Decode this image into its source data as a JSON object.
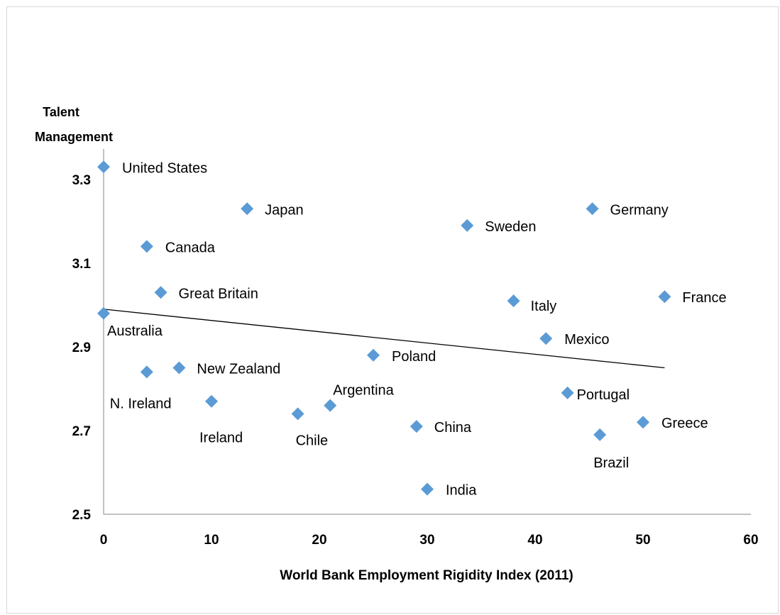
{
  "chart_data": {
    "type": "scatter",
    "title": "",
    "ylabel": [
      "Talent",
      "Management"
    ],
    "xlabel": "World Bank Employment Rigidity Index (2011)",
    "xlim": [
      0,
      60
    ],
    "ylim": [
      2.5,
      3.4
    ],
    "x_ticks": [
      "0",
      "10",
      "20",
      "30",
      "40",
      "50",
      "60"
    ],
    "y_ticks": [
      "2.5",
      "2.7",
      "2.9",
      "3.1",
      "3.3"
    ],
    "grid": false,
    "legend": "none",
    "marker_color": "#5b9bd5",
    "points": [
      {
        "label": "United States",
        "x": 0,
        "y": 3.33
      },
      {
        "label": "Japan",
        "x": 13.3,
        "y": 3.23
      },
      {
        "label": "Canada",
        "x": 4,
        "y": 3.14
      },
      {
        "label": "Great Britain",
        "x": 5.3,
        "y": 3.03
      },
      {
        "label": "Australia",
        "x": 0,
        "y": 2.98
      },
      {
        "label": "New Zealand",
        "x": 7,
        "y": 2.85
      },
      {
        "label": "N. Ireland",
        "x": 4,
        "y": 2.84
      },
      {
        "label": "Ireland",
        "x": 10,
        "y": 2.77
      },
      {
        "label": "Chile",
        "x": 18,
        "y": 2.74
      },
      {
        "label": "Argentina",
        "x": 21,
        "y": 2.76
      },
      {
        "label": "Poland",
        "x": 25,
        "y": 2.88
      },
      {
        "label": "China",
        "x": 29,
        "y": 2.71
      },
      {
        "label": "India",
        "x": 30,
        "y": 2.56
      },
      {
        "label": "Sweden",
        "x": 33.7,
        "y": 3.19
      },
      {
        "label": "Italy",
        "x": 38,
        "y": 3.01
      },
      {
        "label": "Mexico",
        "x": 41,
        "y": 2.92
      },
      {
        "label": "Portugal",
        "x": 43,
        "y": 2.79
      },
      {
        "label": "Brazil",
        "x": 46,
        "y": 2.69
      },
      {
        "label": "Greece",
        "x": 50,
        "y": 2.72
      },
      {
        "label": "Germany",
        "x": 45.3,
        "y": 3.23
      },
      {
        "label": "France",
        "x": 52,
        "y": 3.02
      }
    ],
    "trendline": {
      "x": [
        0,
        52
      ],
      "y": [
        2.99,
        2.85
      ]
    }
  }
}
